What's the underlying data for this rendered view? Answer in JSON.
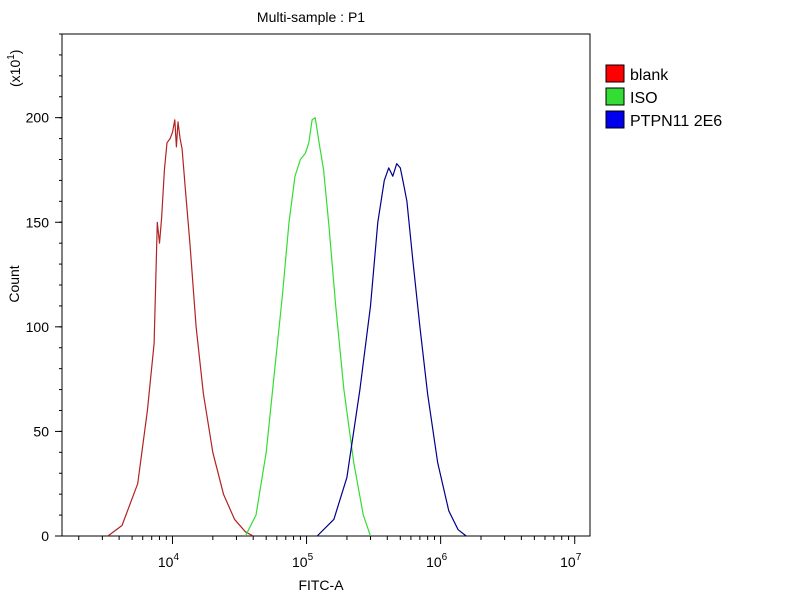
{
  "chart_data": {
    "type": "line",
    "title": "Multi-sample : P1",
    "xlabel": "FITC-A",
    "ylabel": "Count",
    "y_multiplier_label": {
      "prefix": "(x10",
      "exponent": "1",
      "suffix": ")"
    },
    "x_scale": "log",
    "xlim": [
      1500,
      13000000
    ],
    "ylim": [
      0,
      240
    ],
    "x_ticks": [
      {
        "value": 10000,
        "base": "10",
        "exponent": "4"
      },
      {
        "value": 100000,
        "base": "10",
        "exponent": "5"
      },
      {
        "value": 1000000,
        "base": "10",
        "exponent": "6"
      },
      {
        "value": 10000000,
        "base": "10",
        "exponent": "7"
      }
    ],
    "y_ticks": [
      {
        "value": 0,
        "label": "0"
      },
      {
        "value": 50,
        "label": "50"
      },
      {
        "value": 100,
        "label": "100"
      },
      {
        "value": 150,
        "label": "150"
      },
      {
        "value": 200,
        "label": "200"
      }
    ],
    "grid": false,
    "legend_position": "right",
    "series": [
      {
        "name": "blank",
        "color": "#b22222",
        "legend_color": "#ff0000",
        "x": [
          3300,
          4200,
          5500,
          6500,
          7300,
          7700,
          8000,
          8300,
          8700,
          9100,
          9600,
          10000,
          10400,
          10700,
          11000,
          11400,
          11800,
          12500,
          13500,
          15000,
          17000,
          20000,
          24000,
          29000,
          35000,
          40000
        ],
        "y": [
          0,
          5,
          25,
          60,
          92,
          150,
          140,
          152,
          175,
          188,
          190,
          193,
          199,
          186,
          198,
          190,
          185,
          165,
          140,
          100,
          68,
          40,
          20,
          8,
          2,
          0
        ]
      },
      {
        "name": "ISO",
        "color": "#33dd33",
        "legend_color": "#33dd33",
        "x": [
          35000,
          42000,
          50000,
          58000,
          66000,
          74000,
          82000,
          90000,
          98000,
          104000,
          110000,
          116000,
          124000,
          134000,
          147000,
          165000,
          190000,
          225000,
          265000,
          300000
        ],
        "y": [
          0,
          10,
          40,
          80,
          115,
          150,
          172,
          180,
          183,
          188,
          199,
          200,
          188,
          175,
          148,
          110,
          70,
          35,
          10,
          0
        ]
      },
      {
        "name": "PTPN11  2E6",
        "color": "#00008b",
        "legend_color": "#0000ee",
        "x": [
          120000,
          160000,
          200000,
          250000,
          300000,
          340000,
          380000,
          410000,
          440000,
          470000,
          500000,
          530000,
          560000,
          620000,
          700000,
          800000,
          950000,
          1150000,
          1350000,
          1550000
        ],
        "y": [
          0,
          8,
          28,
          70,
          110,
          150,
          170,
          176,
          172,
          178,
          176,
          168,
          160,
          132,
          100,
          68,
          35,
          12,
          3,
          0
        ]
      }
    ]
  }
}
